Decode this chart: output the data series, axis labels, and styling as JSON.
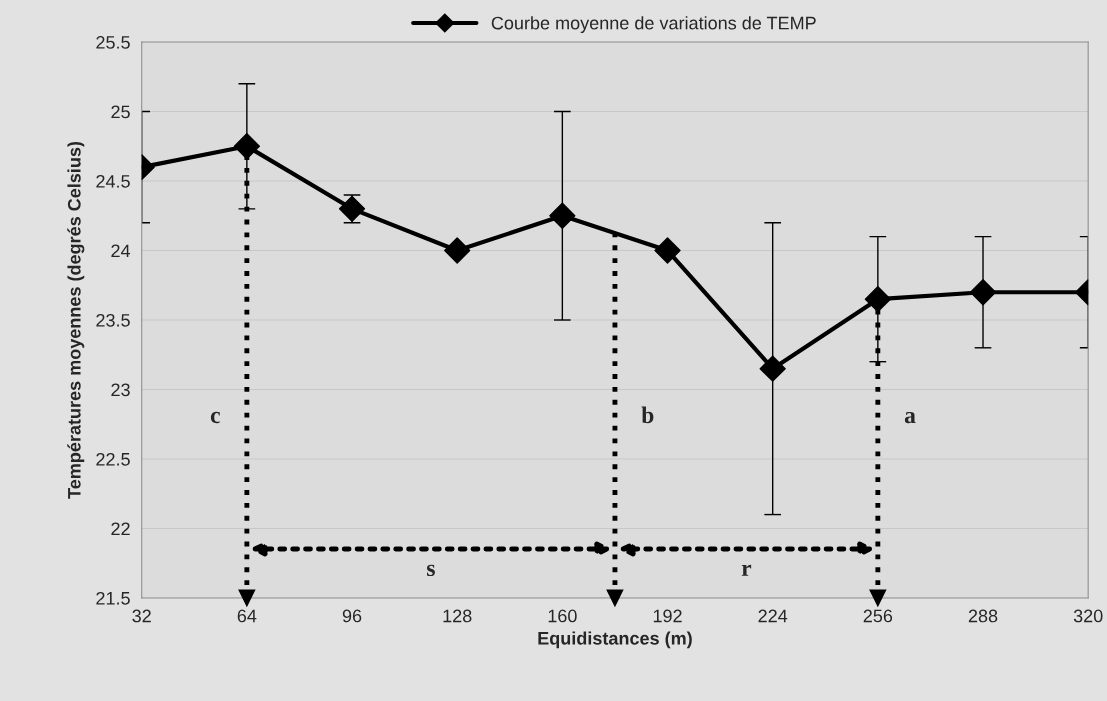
{
  "chart_data": {
    "type": "line",
    "xlabel": "Equidistances (m)",
    "ylabel": "Températures moyennes (degrés Celsius)",
    "x": [
      32,
      64,
      96,
      128,
      160,
      192,
      224,
      256,
      288,
      320
    ],
    "series": [
      {
        "name": "Courbe moyenne de variations de TEMP",
        "color": "#000000",
        "values": [
          24.6,
          24.75,
          24.3,
          24.0,
          24.25,
          24.0,
          23.15,
          23.65,
          23.7,
          23.7
        ],
        "errors": [
          0.4,
          0.45,
          0.1,
          null,
          0.75,
          null,
          1.05,
          0.45,
          0.4,
          0.4
        ]
      }
    ],
    "xlim": [
      32,
      320
    ],
    "xticks": [
      32,
      64,
      96,
      128,
      160,
      192,
      224,
      256,
      288,
      320
    ],
    "ylim": [
      21.5,
      25.5
    ],
    "yticks": [
      21.5,
      22,
      22.5,
      23,
      23.5,
      24,
      24.5,
      25,
      25.5
    ],
    "ref_lines": [
      {
        "axis": "x",
        "value": 64,
        "label": "c",
        "line_style": "dotted"
      },
      {
        "axis": "x",
        "value": 176,
        "label": "b",
        "line_style": "dotted"
      },
      {
        "axis": "x",
        "value": 256,
        "label": "a",
        "line_style": "dotted"
      }
    ],
    "annotations": [
      "s",
      "r"
    ],
    "grid": "y",
    "legend": "top",
    "marker": "diamond",
    "line_style": "solid"
  }
}
